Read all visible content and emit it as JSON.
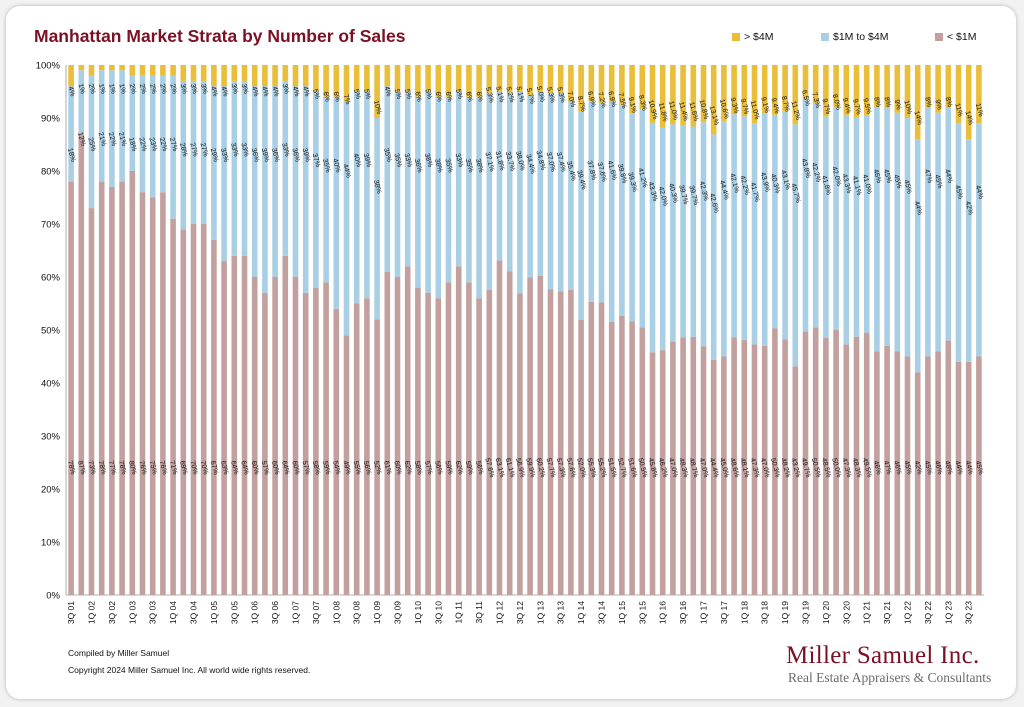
{
  "title": "Manhattan Market Strata by Number of Sales",
  "legend": [
    {
      "label": "> $4M",
      "color": "#e8be3a"
    },
    {
      "label": "$1M to $4M",
      "color": "#a9cfe5"
    },
    {
      "label": "< $1M",
      "color": "#c2a09e"
    }
  ],
  "footer": {
    "compiled_by": "Compiled by Miller Samuel",
    "copyright": "Copyright 2024 Miller Samuel Inc.  All world wide rights reserved."
  },
  "brand": {
    "name": "Miller Samuel Inc.",
    "tagline": "Real Estate Appraisers & Consultants"
  },
  "chart_data": {
    "type": "bar",
    "stacked": true,
    "percent": true,
    "ylim": [
      0,
      100
    ],
    "y_ticks": [
      "0%",
      "10%",
      "20%",
      "30%",
      "40%",
      "50%",
      "60%",
      "70%",
      "80%",
      "90%",
      "100%"
    ],
    "categories": [
      "3Q 01",
      "4Q 01",
      "1Q 02",
      "2Q 02",
      "3Q 02",
      "4Q 02",
      "1Q 03",
      "2Q 03",
      "3Q 03",
      "4Q 03",
      "1Q 04",
      "2Q 04",
      "3Q 04",
      "4Q 04",
      "1Q 05",
      "2Q 05",
      "3Q 05",
      "4Q 05",
      "1Q 06",
      "2Q 06",
      "3Q 06",
      "4Q 06",
      "1Q 07",
      "2Q 07",
      "3Q 07",
      "4Q 07",
      "1Q 08",
      "2Q 08",
      "3Q 08",
      "4Q 08",
      "1Q 09",
      "2Q 09",
      "3Q 09",
      "4Q 09",
      "1Q 10",
      "2Q 10",
      "3Q 10",
      "4Q 10",
      "1Q 11",
      "2Q 11",
      "3Q 11",
      "4Q 11",
      "1Q 12",
      "2Q 12",
      "3Q 12",
      "4Q 12",
      "1Q 13",
      "2Q 13",
      "3Q 13",
      "4Q 13",
      "1Q 14",
      "2Q 14",
      "3Q 14",
      "4Q 14",
      "1Q 15",
      "2Q 15",
      "3Q 15",
      "4Q 15",
      "1Q 16",
      "2Q 16",
      "3Q 16",
      "4Q 16",
      "1Q 17",
      "2Q 17",
      "3Q 17",
      "4Q 17",
      "1Q 18",
      "2Q 18",
      "3Q 18",
      "4Q 18",
      "1Q 19",
      "2Q 19",
      "3Q 19",
      "4Q 19",
      "1Q 20",
      "2Q 20",
      "3Q 20",
      "4Q 20",
      "1Q 21",
      "2Q 21",
      "3Q 21",
      "4Q 21",
      "1Q 22",
      "2Q 22",
      "3Q 22",
      "4Q 22",
      "1Q 23",
      "2Q 23",
      "3Q 23",
      "4Q 23"
    ],
    "x_tick_labels": [
      "3Q 01",
      "1Q 02",
      "3Q 02",
      "1Q 03",
      "3Q 03",
      "1Q 04",
      "3Q 04",
      "1Q 05",
      "3Q 05",
      "1Q 06",
      "3Q 06",
      "1Q 07",
      "3Q 07",
      "1Q 08",
      "3Q 08",
      "1Q 09",
      "3Q 09",
      "1Q 10",
      "3Q 10",
      "1Q 11",
      "3Q 11",
      "1Q 12",
      "3Q 12",
      "1Q 13",
      "3Q 13",
      "1Q 14",
      "3Q 14",
      "1Q 15",
      "3Q 15",
      "1Q 16",
      "3Q 16",
      "1Q 17",
      "3Q 17",
      "1Q 18",
      "3Q 18",
      "1Q 19",
      "3Q 19",
      "1Q 20",
      "3Q 20",
      "1Q 21",
      "3Q 21",
      "1Q 22",
      "3Q 22",
      "1Q 23",
      "3Q 23"
    ],
    "series": [
      {
        "name": "< $1M",
        "color": "#c2a09e",
        "values": [
          78,
          87,
          73,
          78,
          77,
          78,
          80,
          76,
          75,
          76,
          71,
          69,
          70,
          70,
          67,
          63,
          64,
          64,
          60,
          57,
          60,
          64,
          60,
          57,
          58,
          59,
          54,
          49,
          55,
          56,
          52,
          61,
          60,
          62,
          58,
          57,
          56,
          59,
          62,
          59,
          56,
          57.6,
          63.1,
          61.1,
          56.9,
          59.9,
          60.2,
          57.7,
          57.3,
          57.6,
          52.0,
          55.3,
          55.2,
          51.5,
          52.7,
          51.6,
          50.5,
          45.8,
          46.2,
          47.0,
          48.3,
          48.7,
          47.0,
          44.4,
          45.0,
          48.6,
          48.1,
          47.3,
          47.0,
          50.3,
          48.2,
          43.2,
          49.7,
          50.5,
          48.5,
          50.0,
          47.3,
          48.3,
          49.5,
          46,
          47,
          46,
          45,
          42,
          45,
          46,
          48,
          44,
          44,
          45
        ],
        "labels": [
          "78%",
          "87%",
          "73%",
          "78%",
          "77%",
          "78%",
          "80%",
          "76%",
          "75%",
          "76%",
          "71%",
          "69%",
          "70%",
          "70%",
          "67%",
          "63%",
          "64%",
          "64%",
          "60%",
          "57%",
          "60%",
          "64%",
          "60%",
          "57%",
          "58%",
          "59%",
          "54%",
          "49%",
          "55%",
          "56%",
          "52%",
          "61%",
          "60%",
          "62%",
          "58%",
          "57%",
          "56%",
          "59%",
          "62%",
          "59%",
          "56%",
          "57.6%",
          "63.1%",
          "61.1%",
          "56.9%",
          "59.9%",
          "60.2%",
          "57.7%",
          "57.3%",
          "57.6%",
          "52.0%",
          "55.3%",
          "55.2%",
          "51.5%",
          "52.7%",
          "51.6%",
          "50.5%",
          "45.8%",
          "46.2%",
          "47.0%",
          "48.3%",
          "48.7%",
          "47.0%",
          "44.4%",
          "45.0%",
          "48.6%",
          "48.1%",
          "47.3%",
          "47.0%",
          "50.3%",
          "48.2%",
          "43.2%",
          "49.7%",
          "50.5%",
          "48.5%",
          "50.0%",
          "47.3%",
          "48.3%",
          "49.5%",
          "46%",
          "47%",
          "46%",
          "45%",
          "42%",
          "45%",
          "46%",
          "48%",
          "44%",
          "44%",
          "45%"
        ]
      },
      {
        "name": "$1M to $4M",
        "color": "#a9cfe5",
        "values": [
          18,
          12,
          25,
          21,
          22,
          21,
          18,
          22,
          23,
          22,
          27,
          28,
          27,
          27,
          29,
          33,
          33,
          33,
          36,
          39,
          36,
          33,
          36,
          39,
          37,
          35,
          40,
          44,
          40,
          39,
          38,
          35,
          35,
          33,
          36,
          38,
          38,
          35,
          33,
          35,
          38,
          37.1,
          31.8,
          33.7,
          38.0,
          34.4,
          34.8,
          37.0,
          37.4,
          35.4,
          39.4,
          37.8,
          37.6,
          41.6,
          39.8,
          39.3,
          41.2,
          43.3,
          42.0,
          40.3,
          39.7,
          39.7,
          42.3,
          42.6,
          44.4,
          42.1,
          42.2,
          41.7,
          43.9,
          40.3,
          43.1,
          45.7,
          43.8,
          42.2,
          41.8,
          42.0,
          43.3,
          41.1,
          41.0,
          46,
          45,
          45,
          45,
          44,
          47,
          45,
          44,
          45,
          42,
          44
        ],
        "labels": [
          "18%",
          "12%",
          "25%",
          "21%",
          "22%",
          "21%",
          "18%",
          "22%",
          "23%",
          "22%",
          "27%",
          "28%",
          "27%",
          "27%",
          "29%",
          "33%",
          "33%",
          "33%",
          "36%",
          "39%",
          "36%",
          "33%",
          "36%",
          "39%",
          "37%",
          "35%",
          "40%",
          "44%",
          "40%",
          "39%",
          "38%",
          "35%",
          "35%",
          "33%",
          "36%",
          "38%",
          "38%",
          "35%",
          "33%",
          "35%",
          "38%",
          "37.1%",
          "31.8%",
          "33.7%",
          "38.0%",
          "34.4%",
          "34.8%",
          "37.0%",
          "37.4%",
          "35.4%",
          "39.4%",
          "37.8%",
          "37.6%",
          "41.6%",
          "39.8%",
          "39.3%",
          "41.2%",
          "43.3%",
          "42.0%",
          "40.3%",
          "39.7%",
          "39.7%",
          "42.3%",
          "42.6%",
          "44.4%",
          "42.1%",
          "42.2%",
          "41.7%",
          "43.9%",
          "40.3%",
          "43.1%",
          "45.7%",
          "43.8%",
          "42.2%",
          "41.8%",
          "42.0%",
          "43.3%",
          "41.1%",
          "41.0%",
          "46%",
          "45%",
          "45%",
          "45%",
          "44%",
          "47%",
          "45%",
          "44%",
          "45%",
          "42%",
          "44%"
        ]
      },
      {
        "name": "> $4M",
        "color": "#e8be3a",
        "values": [
          4,
          1,
          2,
          1,
          1,
          1,
          2,
          2,
          2,
          2,
          2,
          3,
          3,
          3,
          4,
          4,
          3,
          3,
          4,
          4,
          4,
          3,
          4,
          4,
          5,
          6,
          6,
          7,
          5,
          5,
          10,
          4,
          5,
          5,
          6,
          5,
          6,
          6,
          5,
          6,
          6,
          5.3,
          5.1,
          5.2,
          5.1,
          5.7,
          5.0,
          5.3,
          5.3,
          7.0,
          8.7,
          6.9,
          7.2,
          6.9,
          7.5,
          9.1,
          8.3,
          10.9,
          11.8,
          11.0,
          11.4,
          11.6,
          10.8,
          13.1,
          10.6,
          9.3,
          9.7,
          11.0,
          9.1,
          9.4,
          8.7,
          11.2,
          6.5,
          7.3,
          9.7,
          8.0,
          9.4,
          9.7,
          9.5,
          8,
          8,
          9,
          10,
          14,
          8,
          9,
          8,
          11,
          14,
          11
        ],
        "labels": [
          "4%",
          "1%",
          "2%",
          "1%",
          "1%",
          "1%",
          "2%",
          "2%",
          "2%",
          "2%",
          "2%",
          "3%",
          "3%",
          "3%",
          "4%",
          "4%",
          "3%",
          "3%",
          "4%",
          "4%",
          "4%",
          "3%",
          "4%",
          "4%",
          "5%",
          "6%",
          "6%",
          "7%",
          "5%",
          "5%",
          "10%",
          "4%",
          "5%",
          "5%",
          "6%",
          "5%",
          "6%",
          "6%",
          "5%",
          "6%",
          "6%",
          "5.3%",
          "5.1%",
          "5.2%",
          "5.1%",
          "5.7%",
          "5.0%",
          "5.3%",
          "5.3%",
          "7.0%",
          "8.7%",
          "6.9%",
          "7.2%",
          "6.9%",
          "7.5%",
          "9.1%",
          "8.3%",
          "10.9%",
          "11.8%",
          "11.0%",
          "11.4%",
          "11.6%",
          "10.8%",
          "13.1%",
          "10.6%",
          "9.3%",
          "9.7%",
          "11.0%",
          "9.1%",
          "9.4%",
          "8.7%",
          "11.2%",
          "6.5%",
          "7.3%",
          "9.7%",
          "8.0%",
          "9.4%",
          "9.7%",
          "9.5%",
          "8%",
          "8%",
          "9%",
          "10%",
          "14%",
          "8%",
          "9%",
          "8%",
          "11%",
          "14%",
          "11%"
        ]
      }
    ]
  }
}
